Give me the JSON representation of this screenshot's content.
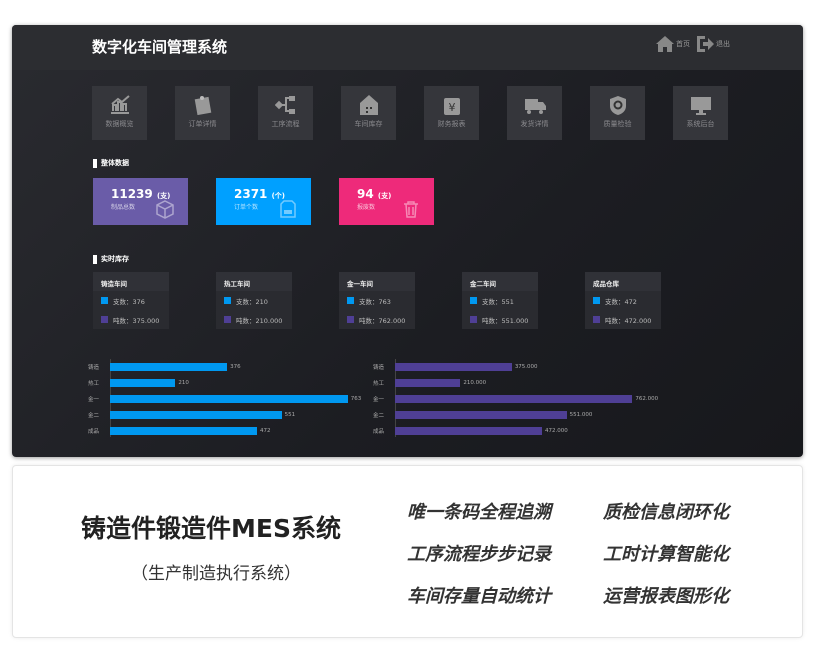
{
  "header": {
    "title": "数字化车间管理系统",
    "home": "首页",
    "logout": "退出"
  },
  "nav": [
    {
      "label": "数据概览",
      "icon": "chart-icon"
    },
    {
      "label": "订单详情",
      "icon": "clipboard-icon"
    },
    {
      "label": "工序流程",
      "icon": "flow-icon"
    },
    {
      "label": "车间库存",
      "icon": "warehouse-icon"
    },
    {
      "label": "财务报表",
      "icon": "yen-icon"
    },
    {
      "label": "发货详情",
      "icon": "truck-icon"
    },
    {
      "label": "质量检验",
      "icon": "shield-icon"
    },
    {
      "label": "系统后台",
      "icon": "monitor-icon"
    }
  ],
  "overview": {
    "title": "整体数据",
    "cards": [
      {
        "value": "11239",
        "unit": "(支)",
        "label": "制品总数",
        "color": "#6a5ca8",
        "icon": "box-icon"
      },
      {
        "value": "2371",
        "unit": "(个)",
        "label": "订单个数",
        "color": "#00a0ff",
        "icon": "document-icon"
      },
      {
        "value": "94",
        "unit": "(支)",
        "label": "报废数",
        "color": "#ee2a7a",
        "icon": "trash-icon"
      }
    ]
  },
  "inventory": {
    "title": "实时库存",
    "count_label": "支数：",
    "ton_label": "吨数：",
    "colors": {
      "count": "#0098f0",
      "ton": "#4f3f95"
    },
    "workshops": [
      {
        "name": "铸造车间",
        "count": "376",
        "ton": "375.000"
      },
      {
        "name": "热工车间",
        "count": "210",
        "ton": "210.000"
      },
      {
        "name": "金一车间",
        "count": "763",
        "ton": "762.000"
      },
      {
        "name": "金二车间",
        "count": "551",
        "ton": "551.000"
      },
      {
        "name": "成品仓库",
        "count": "472",
        "ton": "472.000"
      }
    ]
  },
  "chart_data": [
    {
      "type": "bar",
      "orientation": "horizontal",
      "categories": [
        "铸造",
        "热工",
        "金一",
        "金二",
        "成品"
      ],
      "values": [
        376,
        210,
        763,
        551,
        472
      ],
      "labels": [
        "376",
        "210",
        "763",
        "551",
        "472"
      ],
      "color": "#0098f0"
    },
    {
      "type": "bar",
      "orientation": "horizontal",
      "categories": [
        "铸造",
        "热工",
        "金一",
        "金二",
        "成品"
      ],
      "values": [
        375,
        210,
        762,
        551,
        472
      ],
      "labels": [
        "375.000",
        "210.000",
        "762.000",
        "551.000",
        "472.000"
      ],
      "color": "#4f3f95"
    }
  ],
  "promo": {
    "title": "铸造件锻造件MES系统",
    "subtitle": "（生产制造执行系统）",
    "features": [
      "唯一条码全程追溯",
      "质检信息闭环化",
      "工序流程步步记录",
      "工时计算智能化",
      "车间存量自动统计",
      "运营报表图形化"
    ]
  }
}
